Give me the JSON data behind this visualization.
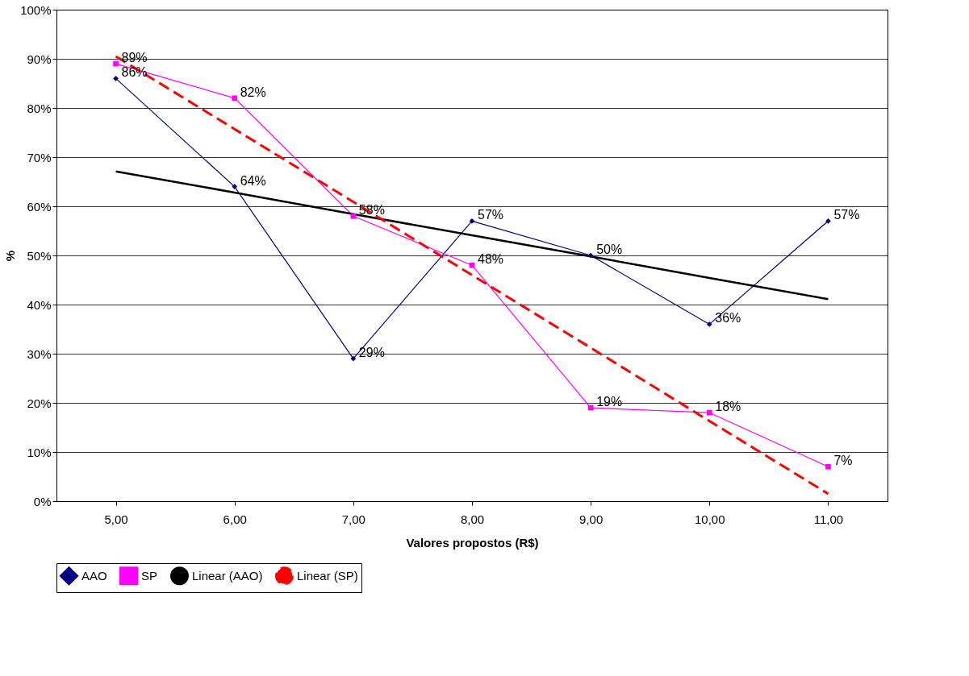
{
  "chart_data": {
    "type": "line",
    "xlabel": "Valores propostos (R$)",
    "ylabel": "%",
    "categories": [
      "5,00",
      "6,00",
      "7,00",
      "8,00",
      "9,00",
      "10,00",
      "11,00"
    ],
    "ylim": [
      0,
      100
    ],
    "yticks": [
      {
        "value": 0,
        "label": "0%"
      },
      {
        "value": 10,
        "label": "10%"
      },
      {
        "value": 20,
        "label": "20%"
      },
      {
        "value": 30,
        "label": "30%"
      },
      {
        "value": 40,
        "label": "40%"
      },
      {
        "value": 50,
        "label": "50%"
      },
      {
        "value": 60,
        "label": "60%"
      },
      {
        "value": 70,
        "label": "70%"
      },
      {
        "value": 80,
        "label": "80%"
      },
      {
        "value": 90,
        "label": "90%"
      },
      {
        "value": 100,
        "label": "100%"
      }
    ],
    "grid": "y",
    "legend": "bottom",
    "series": [
      {
        "name": "AAO",
        "color": "#000080",
        "marker": "diamond",
        "line_style": "solid",
        "values": [
          86,
          64,
          29,
          57,
          50,
          36,
          57
        ],
        "value_labels": [
          "86%",
          "64%",
          "29%",
          "57%",
          "50%",
          "36%",
          "57%"
        ]
      },
      {
        "name": "SP",
        "color": "#ff00ff",
        "marker": "square",
        "line_style": "solid",
        "values": [
          89,
          82,
          58,
          48,
          19,
          18,
          7
        ],
        "value_labels": [
          "89%",
          "82%",
          "58%",
          "48%",
          "19%",
          "18%",
          "7%"
        ]
      },
      {
        "name": "Linear (AAO)",
        "color": "#000000",
        "marker": "none",
        "line_style": "solid",
        "values": [
          67.1,
          62.8,
          58.4,
          54.1,
          49.8,
          45.4,
          41.1
        ]
      },
      {
        "name": "Linear (SP)",
        "color": "#ff0000",
        "marker": "none",
        "line_style": "dashed",
        "values": [
          90.5,
          75.7,
          60.9,
          46.0,
          31.2,
          16.3,
          1.5
        ]
      }
    ]
  }
}
